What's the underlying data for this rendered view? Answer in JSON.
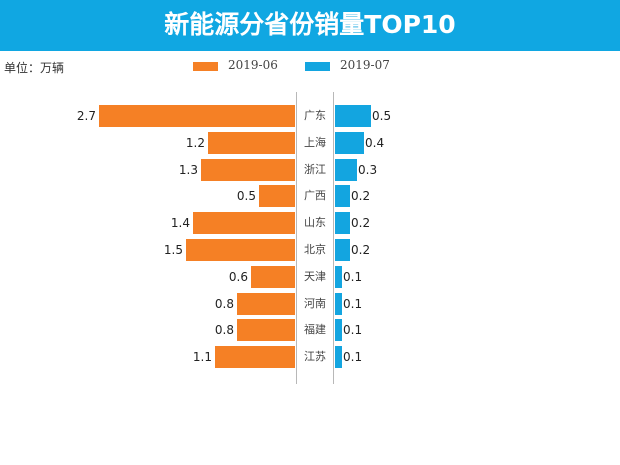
{
  "header": {
    "title": "新能源分省份销量TOP10",
    "background": "#10a7e2"
  },
  "unit_label": "单位：万辆",
  "legend": [
    {
      "label": "2019-06",
      "color": "#f58025"
    },
    {
      "label": "2019-07",
      "color": "#13a5e0"
    }
  ],
  "chart_data": {
    "type": "bar",
    "orientation": "horizontal-butterfly",
    "title": "新能源分省份销量TOP10",
    "unit": "万辆",
    "categories": [
      "广东",
      "上海",
      "浙江",
      "广西",
      "山东",
      "北京",
      "天津",
      "河南",
      "福建",
      "江苏"
    ],
    "series": [
      {
        "name": "2019-06",
        "color": "#f58025",
        "values": [
          2.7,
          1.2,
          1.3,
          0.5,
          1.4,
          1.5,
          0.6,
          0.8,
          0.8,
          1.1
        ]
      },
      {
        "name": "2019-07",
        "color": "#13a5e0",
        "values": [
          0.5,
          0.4,
          0.3,
          0.2,
          0.2,
          0.2,
          0.1,
          0.1,
          0.1,
          0.1
        ]
      }
    ],
    "legend_position": "top",
    "grid": false
  }
}
